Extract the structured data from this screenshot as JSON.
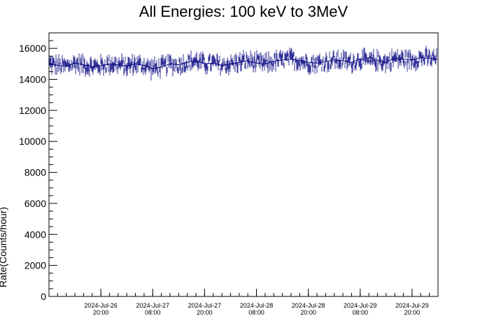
{
  "chart_data": {
    "type": "line",
    "title": "All Energies:  100 keV to 3MeV",
    "xlabel": "",
    "ylabel": "Rate(Counts/hour)",
    "ylim": [
      0,
      17000
    ],
    "x_range": [
      "2024-07-26 08:00",
      "2024-07-30 02:00"
    ],
    "y_ticks": [
      0,
      2000,
      4000,
      6000,
      8000,
      10000,
      12000,
      14000,
      16000
    ],
    "x_ticks": [
      {
        "x": "2024-07-26 20:00",
        "date": "2024-Jul-26",
        "time": "20:00"
      },
      {
        "x": "2024-07-27 08:00",
        "date": "2024-Jul-27",
        "time": "08:00"
      },
      {
        "x": "2024-07-27 20:00",
        "date": "2024-Jul-27",
        "time": "20:00"
      },
      {
        "x": "2024-07-28 08:00",
        "date": "2024-Jul-28",
        "time": "08:00"
      },
      {
        "x": "2024-07-28 20:00",
        "date": "2024-Jul-28",
        "time": "20:00"
      },
      {
        "x": "2024-07-29 08:00",
        "date": "2024-Jul-29",
        "time": "08:00"
      },
      {
        "x": "2024-07-29 20:00",
        "date": "2024-Jul-29",
        "time": "20:00"
      }
    ],
    "series": [
      {
        "color": "#000080",
        "x": [
          "2024-07-26 08:00",
          "2024-07-26 10:00",
          "2024-07-26 12:00",
          "2024-07-26 14:00",
          "2024-07-26 16:00",
          "2024-07-26 18:00",
          "2024-07-26 20:00",
          "2024-07-26 22:00",
          "2024-07-27 00:00",
          "2024-07-27 02:00",
          "2024-07-27 04:00",
          "2024-07-27 06:00",
          "2024-07-27 08:00",
          "2024-07-27 10:00",
          "2024-07-27 12:00",
          "2024-07-27 14:00",
          "2024-07-27 16:00",
          "2024-07-27 18:00",
          "2024-07-27 20:00",
          "2024-07-27 22:00",
          "2024-07-28 00:00",
          "2024-07-28 02:00",
          "2024-07-28 04:00",
          "2024-07-28 06:00",
          "2024-07-28 08:00",
          "2024-07-28 10:00",
          "2024-07-28 12:00",
          "2024-07-28 14:00",
          "2024-07-28 16:00",
          "2024-07-28 18:00",
          "2024-07-28 20:00",
          "2024-07-28 22:00",
          "2024-07-29 00:00",
          "2024-07-29 02:00",
          "2024-07-29 04:00",
          "2024-07-29 06:00",
          "2024-07-29 08:00",
          "2024-07-29 10:00",
          "2024-07-29 12:00",
          "2024-07-29 14:00",
          "2024-07-29 16:00",
          "2024-07-29 18:00",
          "2024-07-29 20:00",
          "2024-07-29 22:00",
          "2024-07-30 00:00",
          "2024-07-30 02:00"
        ],
        "values": [
          15000,
          14900,
          14850,
          15050,
          14950,
          14800,
          14900,
          15000,
          14950,
          14850,
          15000,
          14900,
          14700,
          14800,
          15000,
          14950,
          15100,
          15200,
          15000,
          15050,
          14900,
          15000,
          15100,
          15200,
          15050,
          15000,
          15150,
          15250,
          15300,
          15200,
          15100,
          15050,
          15150,
          15250,
          15200,
          15100,
          15300,
          15150,
          15250,
          15100,
          15350,
          15300,
          15250,
          15400,
          15350,
          15300
        ]
      }
    ],
    "grid": false,
    "legend": "none"
  }
}
